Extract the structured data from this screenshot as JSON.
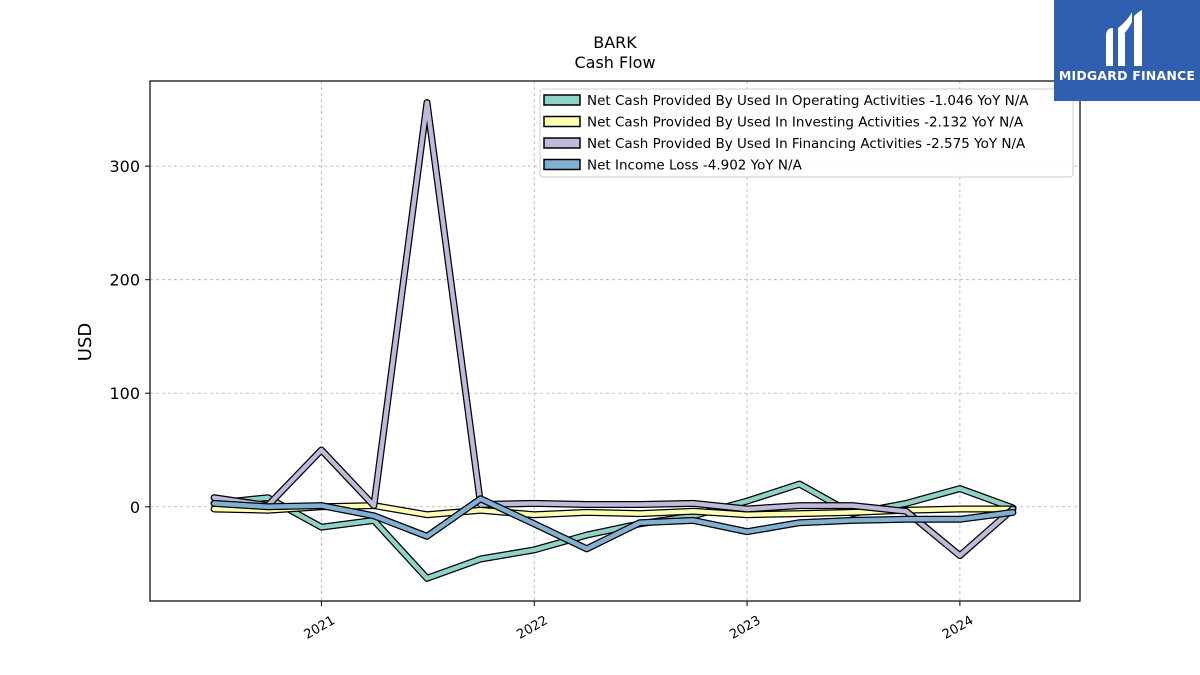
{
  "chart_data": {
    "type": "line",
    "title": "BARK",
    "subtitle": "Cash Flow",
    "xlabel": "",
    "ylabel": "USD",
    "x": [
      "2020-07-01",
      "2020-10-01",
      "2021-01-01",
      "2021-04-01",
      "2021-07-01",
      "2021-10-01",
      "2022-01-01",
      "2022-04-01",
      "2022-07-01",
      "2022-10-01",
      "2023-01-01",
      "2023-04-01",
      "2023-07-01",
      "2023-10-01",
      "2024-01-01",
      "2024-04-01"
    ],
    "xticks": [
      {
        "date": "2021-01-01",
        "label": "2021"
      },
      {
        "date": "2022-01-01",
        "label": "2022"
      },
      {
        "date": "2023-01-01",
        "label": "2023"
      },
      {
        "date": "2024-01-01",
        "label": "2024"
      }
    ],
    "yticks": [
      0,
      100,
      200,
      300
    ],
    "ylim": [
      -83,
      375
    ],
    "grid": true,
    "legend_position": "top-right",
    "series": [
      {
        "name": "Net Cash Provided By Used In Operating Activities  -1.046 YoY N/A",
        "color": "#8dd3c7",
        "values": [
          3,
          8,
          -18,
          -12,
          -63,
          -46,
          -38,
          -25,
          -15,
          -8,
          5,
          20,
          -6,
          3,
          16,
          -1
        ]
      },
      {
        "name": "Net Cash Provided By Used In Investing Activities  -2.132 YoY N/A",
        "color": "#ffffb3",
        "values": [
          -2,
          -3,
          0,
          1,
          -7,
          -3,
          -7,
          -5,
          -6,
          -4,
          -7,
          -6,
          -5,
          -3,
          -2,
          -2
        ]
      },
      {
        "name": "Net Cash Provided By Used In Financing Activities  -2.575 YoY N/A",
        "color": "#bebada",
        "values": [
          8,
          1,
          50,
          1,
          356,
          2,
          3,
          2,
          2,
          3,
          -2,
          1,
          1,
          -4,
          -43,
          -2
        ]
      },
      {
        "name": "Net Income Loss  -4.902 YoY N/A",
        "color": "#80b1d3",
        "values": [
          3,
          0,
          1,
          -8,
          -26,
          7,
          -15,
          -37,
          -14,
          -12,
          -22,
          -14,
          -12,
          -11,
          -11,
          -5
        ]
      }
    ]
  },
  "logo": {
    "text": "MIDGARD FINANCE"
  }
}
